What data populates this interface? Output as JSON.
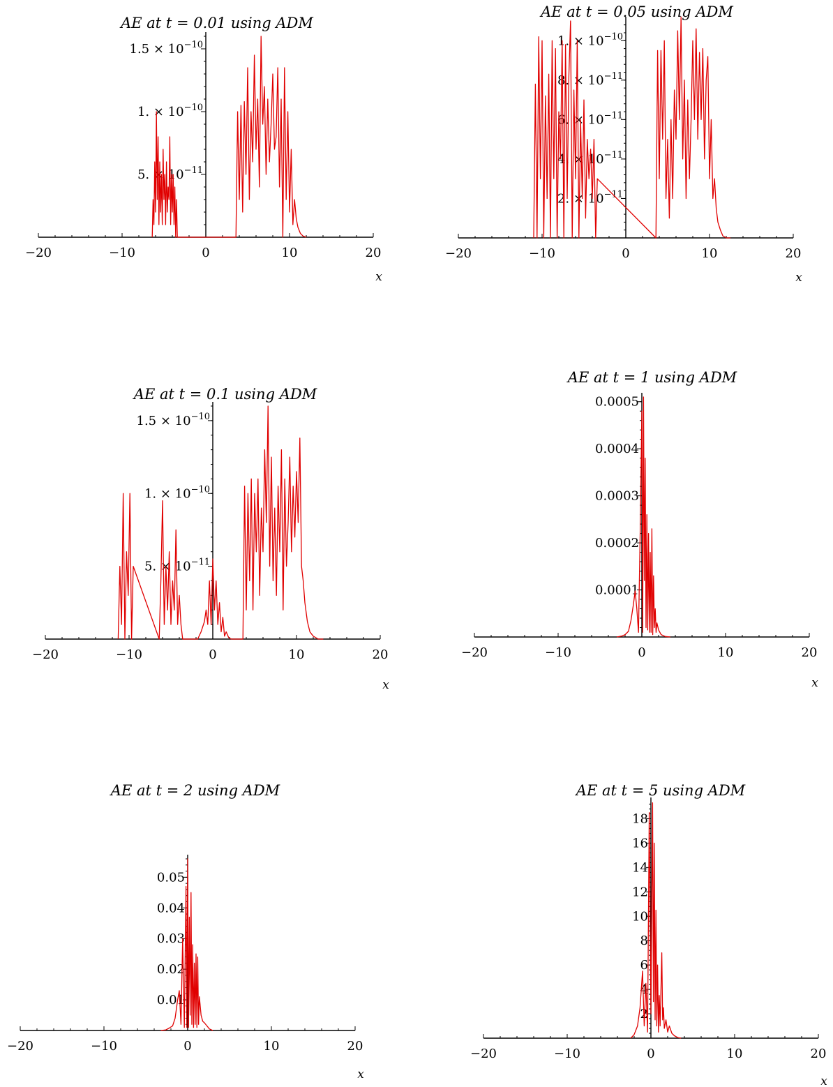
{
  "colors": {
    "curve": "#e00000",
    "axis": "#000000",
    "background": "#ffffff"
  },
  "chart_data": [
    {
      "type": "line",
      "title": "AE at   t = 0.01 using ADM",
      "xlabel": "x",
      "xlim": [
        -20,
        20
      ],
      "ylim": [
        0,
        1.6e-10
      ],
      "x_ticks": [
        "-20",
        "-10",
        "0",
        "10",
        "20"
      ],
      "y_ticks": [
        {
          "value": 5e-11,
          "base": "5. × 10",
          "exp": "-11"
        },
        {
          "value": 1e-10,
          "base": "1. × 10",
          "exp": "-10"
        },
        {
          "value": 1.5e-10,
          "base": "1.5 × 10",
          "exp": "-10"
        }
      ],
      "series": [
        {
          "x": [
            -6.4,
            -6.3,
            -6.2,
            -6.1,
            -6.0,
            -5.9,
            -5.8,
            -5.7,
            -5.6,
            -5.5,
            -5.4,
            -5.3,
            -5.2,
            -5.1,
            -5.0,
            -4.9,
            -4.8,
            -4.7,
            -4.6,
            -4.5,
            -4.4,
            -4.3,
            -4.2,
            -4.1,
            -4.0,
            -3.9,
            -3.8,
            -3.7,
            -3.6,
            -3.5,
            -3.4,
            3.6,
            3.8,
            4.0,
            4.2,
            4.4,
            4.6,
            4.8,
            5.0,
            5.2,
            5.4,
            5.6,
            5.8,
            6.0,
            6.2,
            6.4,
            6.6,
            6.8,
            7.0,
            7.2,
            7.4,
            7.6,
            7.8,
            8.0,
            8.2,
            8.4,
            8.6,
            8.8,
            9.0,
            9.2,
            9.4,
            9.6,
            9.8,
            10.0,
            10.2,
            10.4,
            10.6,
            10.8,
            11.0,
            11.3,
            11.6,
            12.0
          ],
          "y": [
            0,
            3e-11,
            1e-11,
            6e-11,
            2e-11,
            1e-10,
            3e-11,
            8e-11,
            1e-11,
            6e-11,
            2e-11,
            5e-11,
            1e-11,
            7e-11,
            3e-11,
            5e-11,
            1e-11,
            6e-11,
            2e-11,
            4e-11,
            3e-11,
            8e-11,
            1e-11,
            5e-11,
            2e-11,
            5e-11,
            1e-11,
            4e-11,
            0,
            3e-11,
            0,
            0,
            1e-10,
            3e-11,
            1.05e-10,
            2e-11,
            1.08e-10,
            5e-11,
            1.35e-10,
            3e-11,
            1e-10,
            6e-11,
            1.45e-10,
            7e-11,
            1.1e-10,
            4e-11,
            1.6e-10,
            9e-11,
            1.2e-10,
            5e-11,
            1.1e-10,
            6e-11,
            9e-11,
            1.3e-10,
            7e-11,
            8e-11,
            1.35e-10,
            4e-11,
            1.1e-10,
            0,
            1.35e-10,
            3e-11,
            1e-10,
            2e-11,
            7e-11,
            1e-11,
            3e-11,
            1.5e-11,
            8e-12,
            3e-12,
            1e-12,
            0
          ]
        }
      ]
    },
    {
      "type": "line",
      "title": "AE at   t = 0.05 using ADM",
      "xlabel": "x",
      "xlim": [
        -20,
        20
      ],
      "ylim": [
        0,
        1.1e-10
      ],
      "x_ticks": [
        "-20",
        "-10",
        "0",
        "10",
        "20"
      ],
      "y_ticks": [
        {
          "value": 2e-11,
          "base": "2. × 10",
          "exp": "-11"
        },
        {
          "value": 4e-11,
          "base": "4. × 10",
          "exp": "-11"
        },
        {
          "value": 6e-11,
          "base": "6. × 10",
          "exp": "-11"
        },
        {
          "value": 8e-11,
          "base": "8. × 10",
          "exp": "-11"
        },
        {
          "value": 1e-10,
          "base": "1. × 10",
          "exp": "-10"
        }
      ],
      "series": [
        {
          "x": [
            -11.0,
            -10.8,
            -10.6,
            -10.4,
            -10.2,
            -10.0,
            -9.8,
            -9.6,
            -9.4,
            -9.2,
            -9.0,
            -8.8,
            -8.6,
            -8.4,
            -8.2,
            -8.0,
            -7.8,
            -7.6,
            -7.4,
            -7.2,
            -7.0,
            -6.8,
            -6.6,
            -6.4,
            -6.2,
            -6.0,
            -5.8,
            -5.6,
            -5.4,
            -5.2,
            -5.0,
            -4.8,
            -4.6,
            -4.4,
            -4.2,
            -4.0,
            -3.8,
            -3.6,
            -3.4,
            3.6,
            3.8,
            4.0,
            4.2,
            4.4,
            4.6,
            4.8,
            5.0,
            5.2,
            5.4,
            5.6,
            5.8,
            6.0,
            6.2,
            6.4,
            6.6,
            6.8,
            7.0,
            7.2,
            7.4,
            7.6,
            7.8,
            8.0,
            8.2,
            8.4,
            8.6,
            8.8,
            9.0,
            9.2,
            9.4,
            9.6,
            9.8,
            10.0,
            10.2,
            10.4,
            10.6,
            10.8,
            11.0,
            11.3,
            11.6,
            12.0,
            12.5
          ],
          "y": [
            0,
            7.8e-11,
            0,
            1.02e-10,
            3e-11,
            1e-10,
            0,
            7.2e-11,
            2e-11,
            8.3e-11,
            0,
            1e-10,
            3e-11,
            9.6e-11,
            0,
            6.4e-11,
            4e-11,
            1e-10,
            0,
            9.8e-11,
            2e-11,
            8.2e-11,
            1.1e-10,
            0,
            7.5e-11,
            3e-11,
            1e-10,
            0,
            6e-11,
            2e-11,
            7e-11,
            1e-11,
            5e-11,
            3e-11,
            4.5e-11,
            2e-11,
            5e-11,
            0,
            3e-11,
            0,
            9.5e-11,
            3e-11,
            9.5e-11,
            5e-11,
            1e-10,
            2e-11,
            5e-11,
            1e-11,
            6e-11,
            2e-11,
            7.5e-11,
            5e-11,
            1.05e-10,
            6e-11,
            1.12e-10,
            4e-11,
            8e-11,
            2e-11,
            7e-11,
            3e-11,
            6e-11,
            1e-10,
            6e-11,
            1.06e-10,
            5e-11,
            9.4e-11,
            6e-11,
            9.6e-11,
            4e-11,
            8e-11,
            9.2e-11,
            3e-11,
            6e-11,
            2e-11,
            3e-11,
            1.5e-11,
            8e-12,
            4e-12,
            1e-12,
            0,
            0
          ]
        }
      ]
    },
    {
      "type": "line",
      "title": "AE at   t = 0.1 using ADM",
      "xlabel": "x",
      "xlim": [
        -20,
        20
      ],
      "ylim": [
        0,
        1.6e-10
      ],
      "x_ticks": [
        "-20",
        "-10",
        "0",
        "10",
        "20"
      ],
      "y_ticks": [
        {
          "value": 5e-11,
          "base": "5. × 10",
          "exp": "-11"
        },
        {
          "value": 1e-10,
          "base": "1. × 10",
          "exp": "-10"
        },
        {
          "value": 1.5e-10,
          "base": "1.5 × 10",
          "exp": "-10"
        }
      ],
      "series": [
        {
          "x": [
            -11.3,
            -11.1,
            -10.9,
            -10.7,
            -10.5,
            -10.3,
            -10.1,
            -9.9,
            -9.7,
            -9.5,
            -6.4,
            -6.2,
            -6.0,
            -5.8,
            -5.6,
            -5.4,
            -5.2,
            -5.0,
            -4.8,
            -4.6,
            -4.4,
            -4.2,
            -4.0,
            -3.8,
            -3.6,
            -1.8,
            -1.4,
            -1.0,
            -0.8,
            -0.6,
            -0.4,
            -0.2,
            0.0,
            0.2,
            0.4,
            0.6,
            0.8,
            1.0,
            1.2,
            1.4,
            1.6,
            1.9,
            2.2,
            3.6,
            3.8,
            4.0,
            4.2,
            4.4,
            4.6,
            4.8,
            5.0,
            5.2,
            5.4,
            5.6,
            5.8,
            6.0,
            6.2,
            6.4,
            6.6,
            6.8,
            7.0,
            7.2,
            7.4,
            7.6,
            7.8,
            8.0,
            8.2,
            8.4,
            8.6,
            8.8,
            9.0,
            9.2,
            9.4,
            9.6,
            9.8,
            10.0,
            10.2,
            10.4,
            10.6,
            10.8,
            11.0,
            11.3,
            11.6,
            12.0,
            12.6,
            13.2
          ],
          "y": [
            0,
            5e-11,
            1e-11,
            1e-10,
            0,
            6e-11,
            3e-11,
            1e-10,
            0,
            5e-11,
            0,
            4e-11,
            9.5e-11,
            1e-11,
            5e-11,
            2e-11,
            6e-11,
            1e-11,
            4e-11,
            2e-11,
            7.5e-11,
            1e-11,
            3e-11,
            1e-11,
            0,
            0,
            5e-12,
            1.2e-11,
            2e-11,
            1e-11,
            4e-11,
            1e-11,
            5.5e-11,
            2e-11,
            4e-11,
            1e-11,
            2.5e-11,
            5e-12,
            1.5e-11,
            2e-12,
            5e-12,
            1e-12,
            0,
            0,
            1.05e-10,
            2e-11,
            1e-10,
            4e-11,
            1.1e-10,
            2e-11,
            1e-10,
            6e-11,
            1.1e-10,
            3e-11,
            9e-11,
            6e-11,
            1.3e-10,
            8e-11,
            1.6e-10,
            5e-11,
            1.25e-10,
            4e-11,
            9e-11,
            3e-11,
            1.05e-10,
            6e-11,
            1.3e-10,
            2e-11,
            1.1e-10,
            5e-11,
            8e-11,
            1.25e-10,
            6e-11,
            1.05e-10,
            7e-11,
            1.15e-10,
            8e-11,
            1.38e-10,
            5e-11,
            4e-11,
            2.5e-11,
            1.2e-11,
            5e-12,
            2e-12,
            0,
            0
          ]
        }
      ]
    },
    {
      "type": "line",
      "title": "AE at   t = 1 using ADM",
      "xlabel": "x",
      "xlim": [
        -20,
        20
      ],
      "ylim": [
        0,
        0.00051
      ],
      "x_ticks": [
        "-20",
        "-10",
        "0",
        "10",
        "20"
      ],
      "y_ticks": [
        {
          "value": 0.0001,
          "base": "0.0001",
          "exp": ""
        },
        {
          "value": 0.0002,
          "base": "0.0002",
          "exp": ""
        },
        {
          "value": 0.0003,
          "base": "0.0003",
          "exp": ""
        },
        {
          "value": 0.0004,
          "base": "0.0004",
          "exp": ""
        },
        {
          "value": 0.0005,
          "base": "0.0005",
          "exp": ""
        }
      ],
      "series": [
        {
          "x": [
            -3.0,
            -2.4,
            -2.0,
            -1.6,
            -1.3,
            -1.0,
            -0.8,
            -0.6,
            -0.4,
            -0.2,
            0.0,
            0.1,
            0.2,
            0.3,
            0.4,
            0.5,
            0.6,
            0.7,
            0.8,
            0.9,
            1.0,
            1.1,
            1.2,
            1.3,
            1.4,
            1.5,
            1.6,
            1.7,
            1.8,
            2.0,
            2.3,
            2.8,
            3.4
          ],
          "y": [
            0,
            2e-06,
            5e-06,
            1.2e-05,
            3.5e-05,
            7e-05,
            9.8e-05,
            6e-05,
            1e-05,
            0.00022,
            0.00048,
            1e-05,
            0.00051,
            0.00012,
            0.00038,
            2e-05,
            0.00026,
            1.5e-05,
            0.00022,
            1e-05,
            0.00018,
            1e-05,
            0.00023,
            5e-06,
            0.00013,
            2e-05,
            6e-05,
            1e-05,
            3e-05,
            1.5e-05,
            5e-06,
            1e-06,
            0
          ]
        }
      ]
    },
    {
      "type": "line",
      "title": "AE at   t = 2 using ADM",
      "xlabel": "x",
      "xlim": [
        -20,
        20
      ],
      "ylim": [
        0,
        0.056
      ],
      "x_ticks": [
        "-20",
        "-10",
        "0",
        "10",
        "20"
      ],
      "y_ticks": [
        {
          "value": 0.01,
          "base": "0.01",
          "exp": ""
        },
        {
          "value": 0.02,
          "base": "0.02",
          "exp": ""
        },
        {
          "value": 0.03,
          "base": "0.03",
          "exp": ""
        },
        {
          "value": 0.04,
          "base": "0.04",
          "exp": ""
        },
        {
          "value": 0.05,
          "base": "0.05",
          "exp": ""
        }
      ],
      "series": [
        {
          "x": [
            -3.2,
            -2.6,
            -2.2,
            -1.8,
            -1.5,
            -1.2,
            -1.0,
            -0.8,
            -0.6,
            -0.4,
            -0.2,
            -0.1,
            0.0,
            0.1,
            0.2,
            0.3,
            0.4,
            0.5,
            0.6,
            0.7,
            0.8,
            0.9,
            1.0,
            1.1,
            1.2,
            1.3,
            1.4,
            1.6,
            1.8,
            2.0,
            2.3,
            2.6,
            3.0
          ],
          "y": [
            0,
            0.0002,
            0.0008,
            0.0015,
            0.004,
            0.01,
            0.013,
            0.002,
            0.03,
            0.001,
            0.047,
            0.001,
            0.056,
            0.001,
            0.037,
            0.005,
            0.045,
            0.002,
            0.028,
            0.001,
            0.022,
            0.002,
            0.025,
            0.001,
            0.024,
            0.002,
            0.011,
            0.005,
            0.003,
            0.0025,
            0.0015,
            0.0005,
            0
          ]
        }
      ]
    },
    {
      "type": "line",
      "title": "AE at   t = 5 using ADM",
      "xlabel": "x",
      "xlim": [
        -20,
        20
      ],
      "ylim": [
        0,
        19.4
      ],
      "x_ticks": [
        "-20",
        "-10",
        "0",
        "10",
        "20"
      ],
      "y_ticks": [
        {
          "value": 2,
          "base": "2",
          "exp": ""
        },
        {
          "value": 4,
          "base": "4",
          "exp": ""
        },
        {
          "value": 6,
          "base": "6",
          "exp": ""
        },
        {
          "value": 8,
          "base": "8",
          "exp": ""
        },
        {
          "value": 10,
          "base": "10",
          "exp": ""
        },
        {
          "value": 12,
          "base": "12",
          "exp": ""
        },
        {
          "value": 14,
          "base": "14",
          "exp": ""
        },
        {
          "value": 16,
          "base": "16",
          "exp": ""
        },
        {
          "value": 18,
          "base": "18",
          "exp": ""
        }
      ],
      "series": [
        {
          "x": [
            -2.4,
            -2.0,
            -1.6,
            -1.3,
            -1.0,
            -0.8,
            -0.6,
            -0.4,
            -0.2,
            0.0,
            0.2,
            0.3,
            0.4,
            0.5,
            0.6,
            0.7,
            0.8,
            0.9,
            1.0,
            1.1,
            1.2,
            1.3,
            1.4,
            1.5,
            1.6,
            1.8,
            2.0,
            2.2,
            2.5,
            2.8,
            3.2,
            3.6
          ],
          "y": [
            0,
            0.3,
            1.0,
            2.5,
            5.5,
            1.0,
            4.5,
            0.5,
            18.5,
            2.0,
            19.3,
            3.0,
            16.0,
            1.5,
            10.5,
            1.0,
            6.0,
            0.5,
            3.5,
            1.0,
            4.0,
            7.0,
            1.5,
            2.5,
            0.8,
            1.5,
            0.5,
            1.0,
            0.4,
            0.2,
            0.05,
            0
          ]
        }
      ]
    }
  ]
}
